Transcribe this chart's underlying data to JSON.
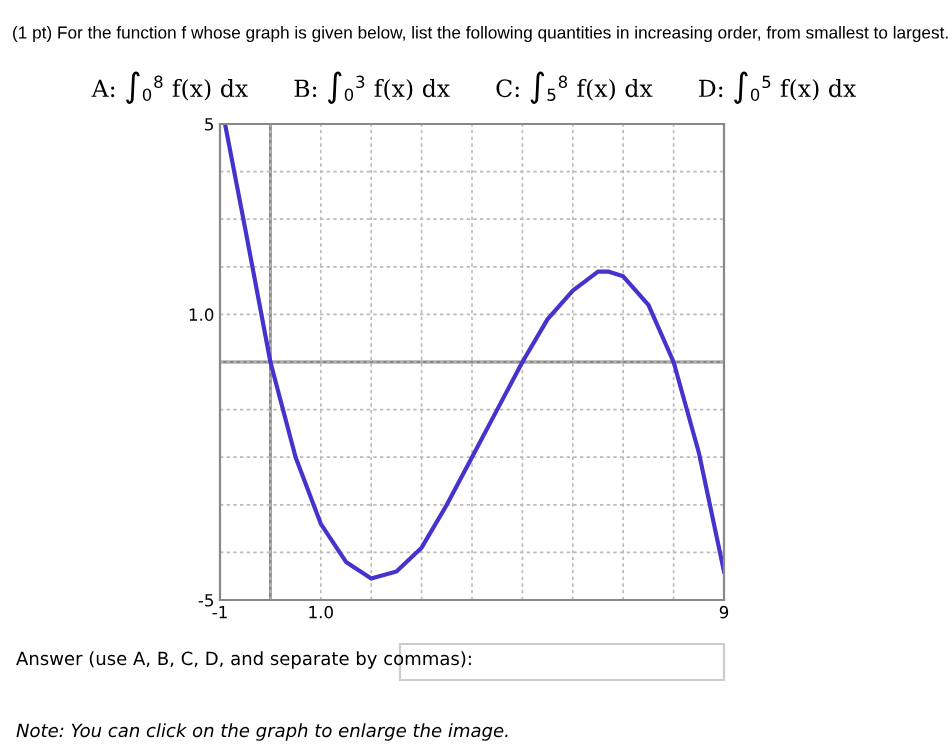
{
  "chart_data": {
    "type": "line",
    "title": "(1 pt) For the function f whose graph is given below, list the following quantities in increasing order, from smallest to largest.",
    "subtitle": "A: ∫$_{0}$$^{8}$ f(x) dx      B: ∫$_{0}$$^{3}$ f(x) dx      C: ∫$_{5}$$^{8}$ f(x) dx      D: ∫$_{0}$$^{5}$ f(x) dx",
    "x": [
      -0.9,
      -0.5,
      0,
      0.5,
      1,
      1.5,
      2,
      2.5,
      3,
      3.5,
      4,
      4.5,
      5,
      5.5,
      6,
      6.5,
      6.7,
      7,
      7.5,
      8,
      8.5,
      9
    ],
    "series": [
      {
        "color": "#4433cc",
        "values": [
          5.0,
          2.8,
          0,
          -2.0,
          -3.4,
          -4.2,
          -4.55,
          -4.4,
          -3.9,
          -3.0,
          -2.0,
          -1.0,
          0,
          0.9,
          1.5,
          1.9,
          1.9,
          1.8,
          1.2,
          0,
          -1.9,
          -4.4
        ]
      }
    ],
    "xlim": [
      -1,
      9
    ],
    "ylim": [
      -5,
      5
    ],
    "xticks": [
      -1,
      {
        "value": 0,
        "label": null
      },
      {
        "value": 1,
        "label": "1.0"
      },
      {
        "value": 2,
        "label": null
      },
      {
        "value": 3,
        "label": null
      },
      {
        "value": 4,
        "label": null
      },
      {
        "value": 5,
        "label": null
      },
      {
        "value": 6,
        "label": null
      },
      {
        "value": 7,
        "label": null
      },
      {
        "value": 8,
        "label": null
      },
      9
    ],
    "yticks": [
      -5,
      {
        "value": -4,
        "label": null
      },
      {
        "value": -3,
        "label": null
      },
      {
        "value": -2,
        "label": null
      },
      {
        "value": -1,
        "label": null
      },
      {
        "value": 0,
        "label": null
      },
      {
        "value": 1,
        "label": "1.0"
      },
      {
        "value": 2,
        "label": null
      },
      {
        "value": 3,
        "label": null
      },
      {
        "value": 4,
        "label": null
      },
      5
    ],
    "grid": true,
    "annotations": [
      "Answer (use A, B, C, D, and separate by commas):",
      "Note: You can click on the graph to enlarge the image."
    ]
  }
}
